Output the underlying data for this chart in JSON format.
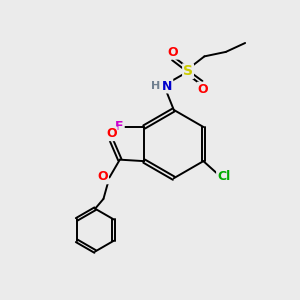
{
  "background_color": "#ebebeb",
  "bond_color": "#000000",
  "atom_colors": {
    "F": "#cc00cc",
    "Cl": "#00aa00",
    "O": "#ff0000",
    "N": "#0000cc",
    "S": "#cccc00",
    "H": "#708090",
    "C": "#000000"
  },
  "figsize": [
    3.0,
    3.0
  ],
  "dpi": 100
}
